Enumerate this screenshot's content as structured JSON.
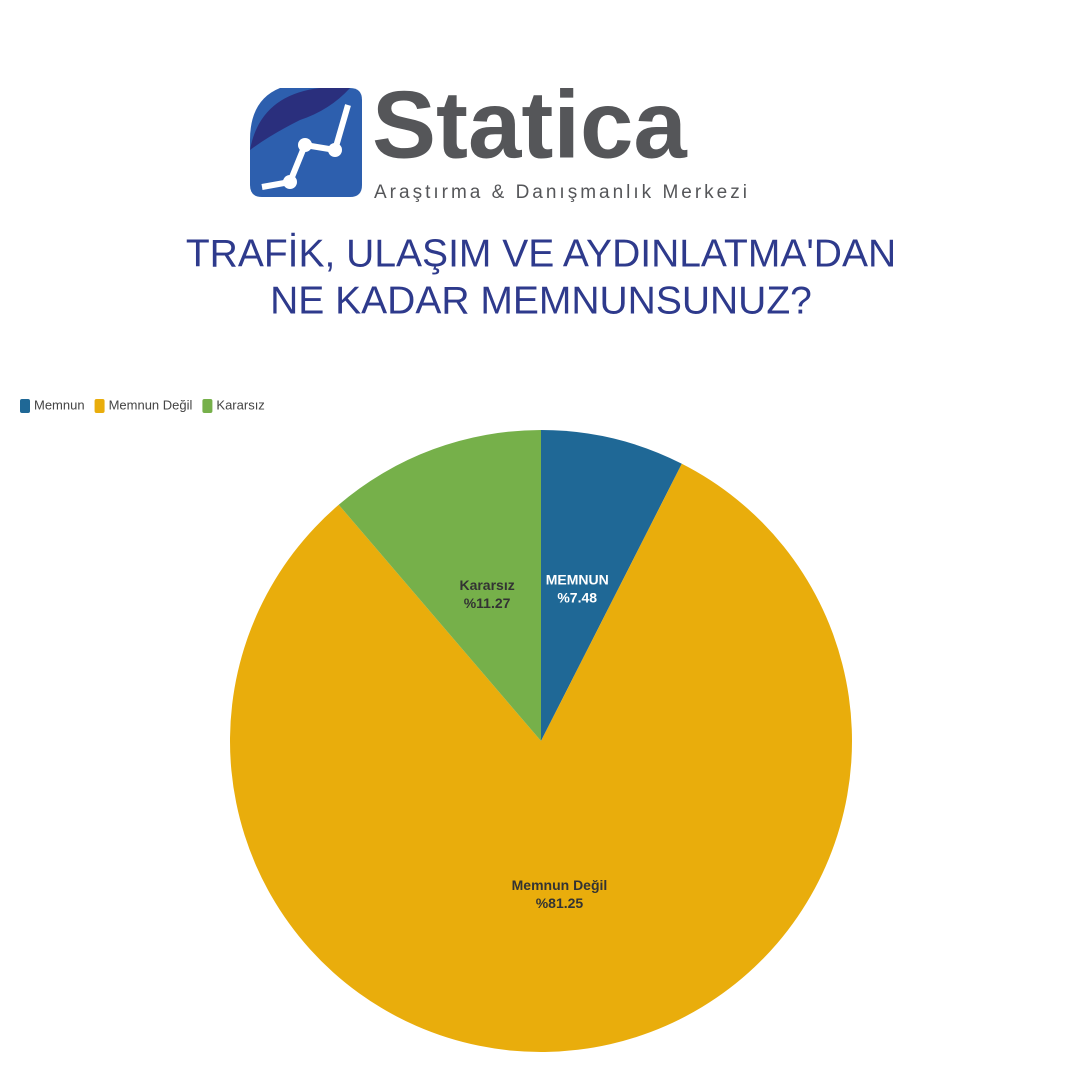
{
  "logo": {
    "name": "Statica",
    "tagline": "Araştırma & Danışmanlık Merkezi"
  },
  "chart_data": {
    "type": "pie",
    "title": [
      "TRAFİK, ULAŞIM VE AYDINLATMA'DAN",
      "NE KADAR MEMNUNSUNUZ?"
    ],
    "categories": [
      "Memnun",
      "Memnun Değil",
      "Kararsız"
    ],
    "values": [
      7.48,
      81.25,
      11.27
    ],
    "value_labels": [
      "%7.48",
      "%81.25",
      "%11.27"
    ],
    "slice_labels": [
      "MEMNUN",
      "Memnun Değil",
      "Kararsız"
    ],
    "colors": [
      "#1f6896",
      "#e9ad0c",
      "#76b04a"
    ],
    "label_colors": [
      "#ffffff",
      "#333333",
      "#333333"
    ],
    "legend": "top-left"
  }
}
